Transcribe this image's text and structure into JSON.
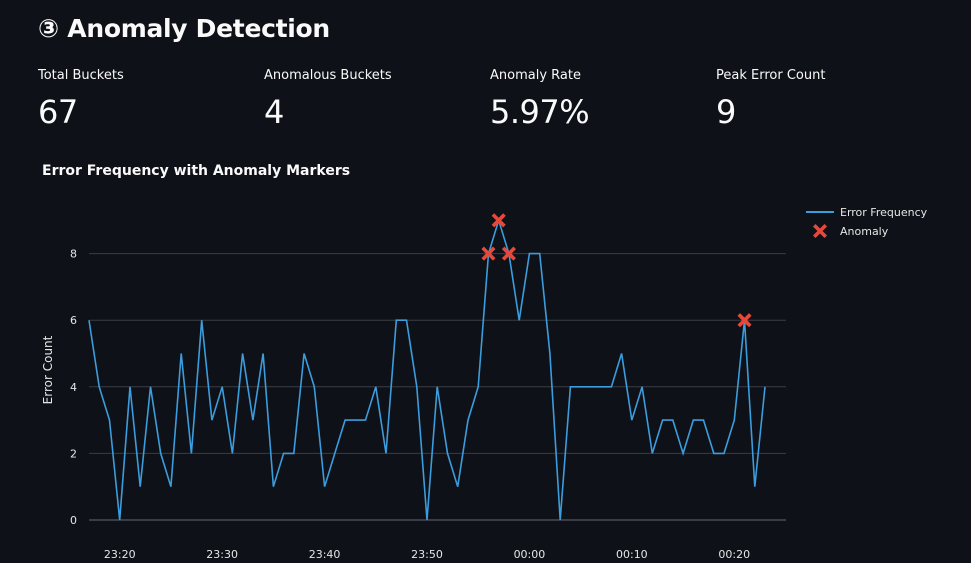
{
  "header": {
    "title": "③ Anomaly Detection"
  },
  "metrics": [
    {
      "label": "Total Buckets",
      "value": "67"
    },
    {
      "label": "Anomalous Buckets",
      "value": "4"
    },
    {
      "label": "Anomaly Rate",
      "value": "5.97%"
    },
    {
      "label": "Peak Error Count",
      "value": "9"
    }
  ],
  "colors": {
    "line": "#3b9ddd",
    "anomaly": "#e8483a",
    "grid": "#3a3d45"
  },
  "chart_data": {
    "type": "line",
    "title": "Error Frequency with Anomaly Markers",
    "xlabel": "",
    "ylabel": "Error Count",
    "ylim": [
      0,
      9
    ],
    "yticks": [
      0,
      2,
      4,
      6,
      8
    ],
    "grid": true,
    "legend_position": "top-right",
    "start_time": "23:17",
    "interval_minutes": 1,
    "xticks": [
      {
        "index": 3,
        "label": "23:20"
      },
      {
        "index": 13,
        "label": "23:30"
      },
      {
        "index": 23,
        "label": "23:40"
      },
      {
        "index": 33,
        "label": "23:50"
      },
      {
        "index": 43,
        "label": "00:00"
      },
      {
        "index": 53,
        "label": "00:10"
      },
      {
        "index": 63,
        "label": "00:20"
      }
    ],
    "series": [
      {
        "name": "Error Frequency",
        "values": [
          6,
          4,
          3,
          0,
          4,
          1,
          4,
          2,
          1,
          5,
          2,
          6,
          3,
          4,
          2,
          5,
          3,
          5,
          1,
          2,
          2,
          5,
          4,
          1,
          2,
          3,
          3,
          3,
          4,
          2,
          6,
          6,
          4,
          0,
          4,
          2,
          1,
          3,
          4,
          8,
          9,
          8,
          6,
          8,
          8,
          5,
          0,
          4,
          4,
          4,
          4,
          4,
          5,
          3,
          4,
          2,
          3,
          3,
          2,
          3,
          3,
          2,
          2,
          3,
          6,
          1,
          4
        ]
      }
    ],
    "anomalies": {
      "name": "Anomaly",
      "indices": [
        39,
        40,
        41,
        64
      ],
      "values": [
        8,
        9,
        8,
        6
      ]
    },
    "legend": [
      "Error Frequency",
      "Anomaly"
    ]
  }
}
